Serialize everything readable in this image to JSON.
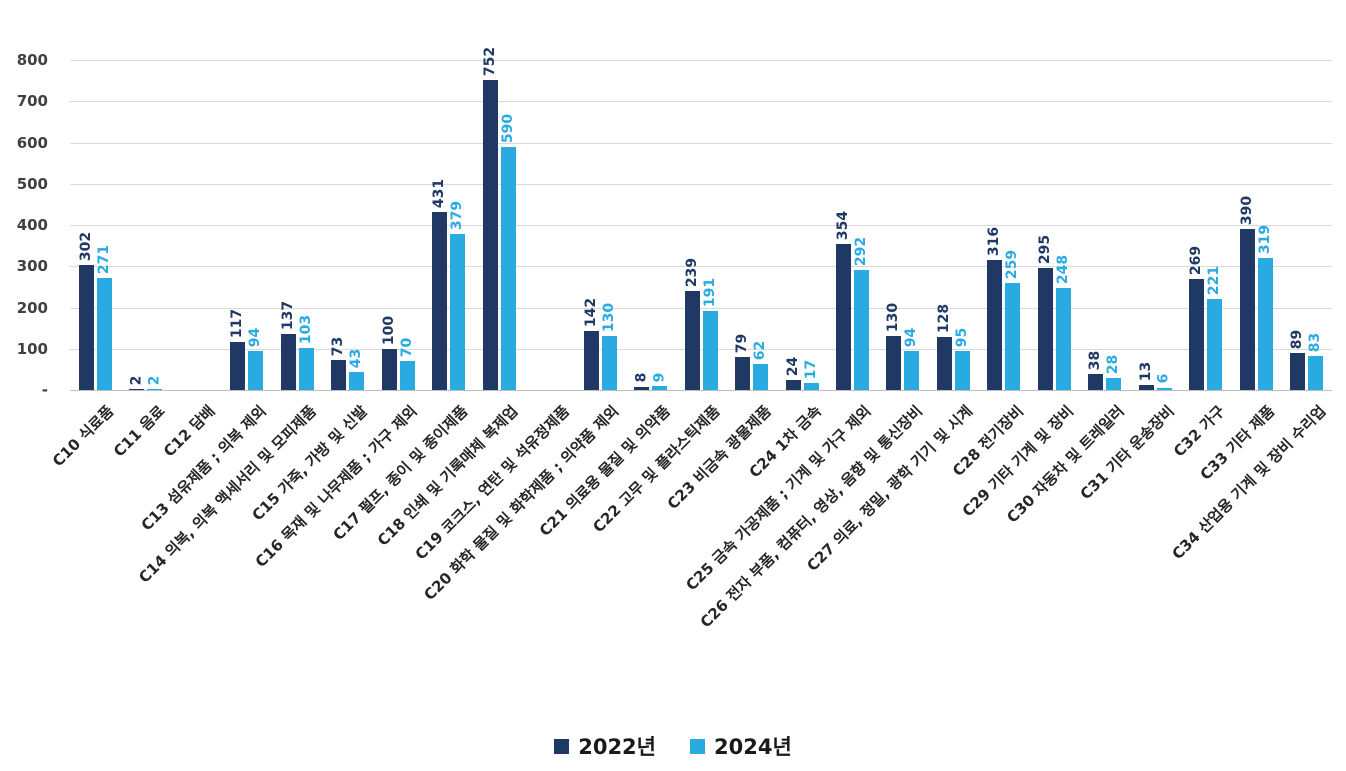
{
  "chart_data": {
    "type": "bar",
    "title": "",
    "xlabel": "",
    "ylabel": "",
    "ylim": [
      0,
      800
    ],
    "ytick_step": 100,
    "ytick_labels": [
      "-",
      "100",
      "200",
      "300",
      "400",
      "500",
      "600",
      "700",
      "800"
    ],
    "grid": true,
    "legend_position": "bottom",
    "categories": [
      "C10 식료품",
      "C11 음료",
      "C12 담배",
      "C13 섬유제품 ; 의복 제외",
      "C14 의복, 의복 액세서리 및 모피제품",
      "C15 가죽, 가방 및 신발",
      "C16 목재 및 나무제품 ; 가구 제외",
      "C17 펄프, 종이 및 종이제품",
      "C18 인쇄 및 기록매체 복제업",
      "C19 코크스, 연탄 및 석유정제품",
      "C20 화학 물질 및 화학제품 ; 의약품 제외",
      "C21 의료용 물질 및 의약품",
      "C22 고무 및 플라스틱제품",
      "C23 비금속 광물제품",
      "C24 1차 금속",
      "C25 금속 가공제품 ; 기계 및 가구 제외",
      "C26 전자 부품, 컴퓨터, 영상, 음향 및 통신장비",
      "C27 의료, 정밀, 광학 기기 및 시계",
      "C28 전기장비",
      "C29 기타 기계 및 장비",
      "C30 자동차 및 트레일러",
      "C31 기타 운송장비",
      "C32 가구",
      "C33 기타 제품",
      "C34 산업용 기계 및 장비 수리업"
    ],
    "series": [
      {
        "name": "2022년",
        "color": "#1f3864",
        "values": [
          302,
          2,
          null,
          117,
          137,
          73,
          100,
          431,
          752,
          null,
          142,
          8,
          239,
          79,
          24,
          354,
          130,
          128,
          316,
          295,
          38,
          13,
          269,
          390,
          89
        ]
      },
      {
        "name": "2024년",
        "color": "#29abe2",
        "values": [
          271,
          2,
          null,
          94,
          103,
          43,
          70,
          379,
          590,
          null,
          130,
          9,
          191,
          62,
          17,
          292,
          94,
          95,
          259,
          248,
          28,
          6,
          221,
          319,
          83
        ]
      }
    ]
  }
}
